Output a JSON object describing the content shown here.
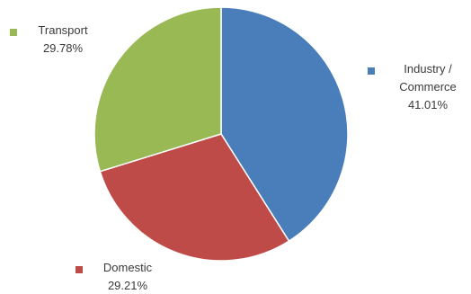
{
  "chart_data": {
    "type": "pie",
    "title": "",
    "slices": [
      {
        "label_lines": [
          "Industry /",
          "Commerce"
        ],
        "value": 41.01,
        "value_label": "41.01%",
        "color": "#4a7ebb"
      },
      {
        "label_lines": [
          "Domestic"
        ],
        "value": 29.21,
        "value_label": "29.21%",
        "color": "#be4b48"
      },
      {
        "label_lines": [
          "Transport"
        ],
        "value": 29.78,
        "value_label": "29.78%",
        "color": "#98b954"
      }
    ],
    "start_angle_deg": 0,
    "direction": "clockwise",
    "legend": "none",
    "data_labels": "outside"
  }
}
